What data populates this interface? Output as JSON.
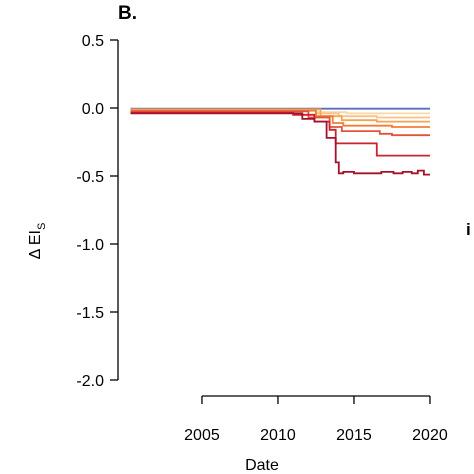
{
  "chart_data": {
    "type": "line",
    "panel_label": "B.",
    "xlabel": "Date",
    "ylabel_main": "Δ EI",
    "ylabel_sub": "S",
    "xlim": [
      2000.2,
      2020.2
    ],
    "ylim": [
      -2.0,
      0.5
    ],
    "x_ticks": [
      2005,
      2010,
      2015,
      2020
    ],
    "x_tick_labels": [
      "2005",
      "2010",
      "2015",
      "2020"
    ],
    "y_ticks": [
      0.5,
      0.0,
      -0.5,
      -1.0,
      -1.5,
      -2.0
    ],
    "y_tick_labels": [
      "0.5",
      "0.0",
      "-0.5",
      "-1.0",
      "-1.5",
      "-2.0"
    ],
    "grid": false,
    "edge_text": "i",
    "series": [
      {
        "color": "#5b6dc0",
        "points": [
          [
            2000.3,
            -0.005
          ],
          [
            2020,
            -0.005
          ]
        ]
      },
      {
        "color": "#fbd7a8",
        "points": [
          [
            2000.3,
            -0.01
          ],
          [
            2010.8,
            -0.01
          ],
          [
            2012.5,
            -0.03
          ],
          [
            2014.5,
            -0.04
          ],
          [
            2020,
            -0.04
          ]
        ]
      },
      {
        "color": "#f9c288",
        "points": [
          [
            2000.3,
            -0.015
          ],
          [
            2010.8,
            -0.015
          ],
          [
            2012.5,
            -0.04
          ],
          [
            2014,
            -0.06
          ],
          [
            2016.5,
            -0.07
          ],
          [
            2020,
            -0.07
          ]
        ]
      },
      {
        "color": "#f7a450",
        "points": [
          [
            2000.3,
            -0.01
          ],
          [
            2011,
            -0.01
          ],
          [
            2012.8,
            -0.06
          ],
          [
            2014.2,
            -0.09
          ],
          [
            2016.5,
            -0.1
          ],
          [
            2020,
            -0.1
          ]
        ]
      },
      {
        "color": "#f27d35",
        "points": [
          [
            2000.3,
            -0.02
          ],
          [
            2011,
            -0.02
          ],
          [
            2012.5,
            -0.06
          ],
          [
            2013.6,
            -0.11
          ],
          [
            2014.3,
            -0.13
          ],
          [
            2017.5,
            -0.14
          ],
          [
            2020,
            -0.14
          ]
        ]
      },
      {
        "color": "#e0533a",
        "points": [
          [
            2000.3,
            -0.025
          ],
          [
            2010.5,
            -0.025
          ],
          [
            2012,
            -0.07
          ],
          [
            2013.4,
            -0.14
          ],
          [
            2014.2,
            -0.17
          ],
          [
            2016.7,
            -0.19
          ],
          [
            2017.5,
            -0.2
          ],
          [
            2020,
            -0.2
          ]
        ]
      },
      {
        "color": "#c8232f",
        "points": [
          [
            2000.3,
            -0.035
          ],
          [
            2010.2,
            -0.035
          ],
          [
            2011,
            -0.05
          ],
          [
            2012.4,
            -0.1
          ],
          [
            2013.4,
            -0.16
          ],
          [
            2013.8,
            -0.26
          ],
          [
            2016.2,
            -0.26
          ],
          [
            2016.5,
            -0.35
          ],
          [
            2020,
            -0.35
          ]
        ]
      },
      {
        "color": "#a3112a",
        "points": [
          [
            2000.3,
            -0.04
          ],
          [
            2010.8,
            -0.04
          ],
          [
            2011.6,
            -0.08
          ],
          [
            2012.4,
            -0.1
          ],
          [
            2013.2,
            -0.22
          ],
          [
            2013.8,
            -0.4
          ],
          [
            2014,
            -0.48
          ],
          [
            2014.3,
            -0.47
          ],
          [
            2015,
            -0.48
          ],
          [
            2016.8,
            -0.47
          ],
          [
            2017.6,
            -0.48
          ],
          [
            2018.2,
            -0.47
          ],
          [
            2018.8,
            -0.48
          ],
          [
            2019.2,
            -0.46
          ],
          [
            2019.6,
            -0.49
          ],
          [
            2020,
            -0.49
          ]
        ]
      }
    ]
  }
}
